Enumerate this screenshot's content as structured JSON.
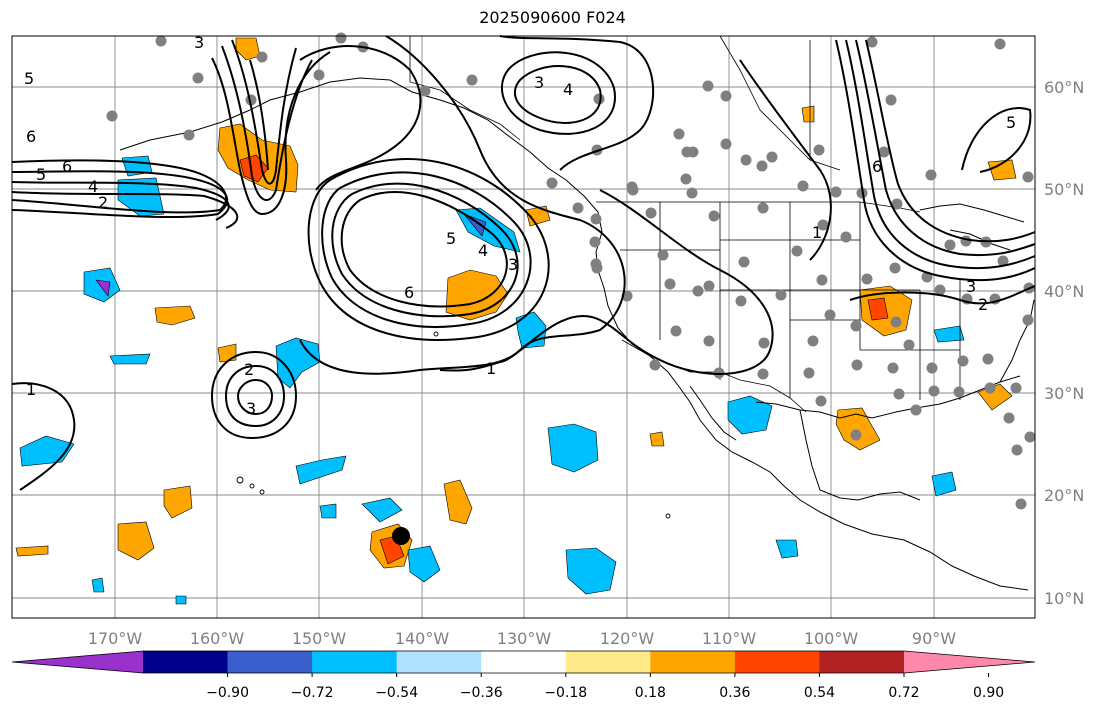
{
  "title": "2025090600 F024",
  "longitude_labels": [
    "170°W",
    "160°W",
    "150°W",
    "140°W",
    "130°W",
    "120°W",
    "110°W",
    "100°W",
    "90°W"
  ],
  "latitude_labels": [
    "60°N",
    "50°N",
    "40°N",
    "30°N",
    "20°N",
    "10°N"
  ],
  "colorbar": {
    "ticks": [
      "−0.90",
      "−0.72",
      "−0.54",
      "−0.36",
      "−0.18",
      "0.18",
      "0.36",
      "0.54",
      "0.72",
      "0.90"
    ],
    "colors": [
      "#9932cc",
      "#00008b",
      "#3a5fcd",
      "#00bfff",
      "#b0e2ff",
      "#ffffff",
      "#ffeb8a",
      "#ffa500",
      "#ff4500",
      "#b22222",
      "#ff88aa"
    ]
  },
  "contour_labels": [
    "1",
    "2",
    "3",
    "4",
    "5",
    "6"
  ],
  "colors": {
    "land": "#ffffff",
    "grid": "#888888",
    "station": "#808080",
    "contour": "#000000"
  }
}
